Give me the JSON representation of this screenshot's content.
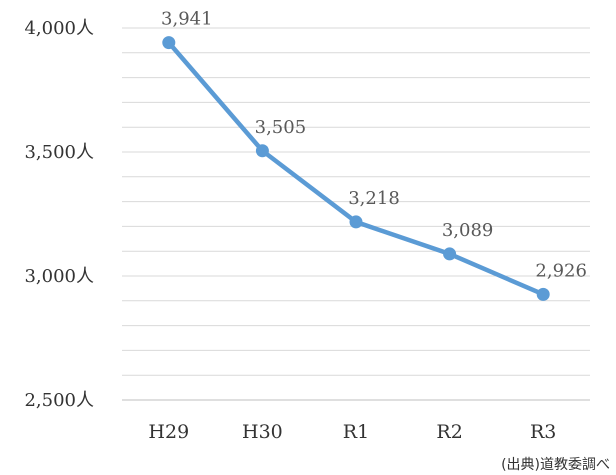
{
  "chart_data": {
    "type": "line",
    "categories": [
      "H29",
      "H30",
      "R1",
      "R2",
      "R3"
    ],
    "series": [
      {
        "values": [
          3941,
          3505,
          3218,
          3089,
          2926
        ]
      }
    ],
    "data_labels": [
      "3,941",
      "3,505",
      "3,218",
      "3,089",
      "2,926"
    ],
    "y_ticks": [
      {
        "value": 4000,
        "label": "4,000人"
      },
      {
        "value": 3500,
        "label": "3,500人"
      },
      {
        "value": 3000,
        "label": "3,000人"
      },
      {
        "value": 2500,
        "label": "2,500人"
      }
    ],
    "ylim": [
      2500,
      4000
    ],
    "minor_gridline_step": 100,
    "grid": true,
    "line_color": "#5b9bd5",
    "grid_color": "#d9d9d9",
    "source": "(出典)道教委調べ"
  }
}
